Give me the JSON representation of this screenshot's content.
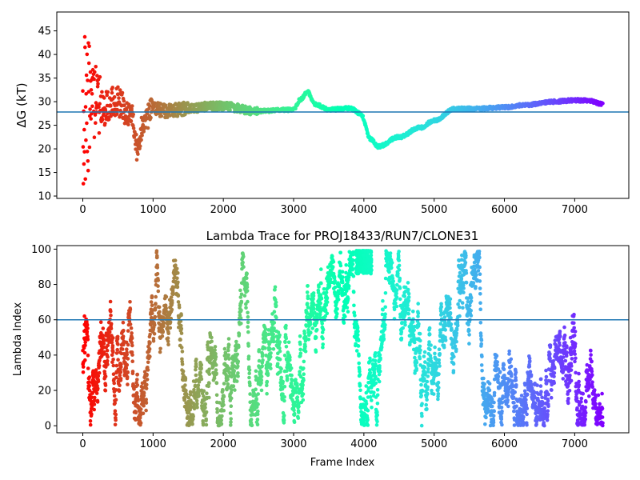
{
  "chart_data": [
    {
      "type": "scatter",
      "title": "",
      "xlabel": "",
      "ylabel": "ΔG (kT)",
      "xlim": [
        -370,
        7770
      ],
      "ylim": [
        9.5,
        49
      ],
      "xticks": [
        0,
        1000,
        2000,
        3000,
        4000,
        5000,
        6000,
        7000
      ],
      "yticks": [
        10,
        15,
        20,
        25,
        30,
        35,
        40,
        45
      ],
      "hline": 27.8,
      "hline_color": "#1f77b4",
      "colormap": "rainbow",
      "x_max": 7400,
      "trace_anchors": [
        [
          0,
          28
        ],
        [
          150,
          30
        ],
        [
          300,
          28.5
        ],
        [
          500,
          30
        ],
        [
          700,
          27
        ],
        [
          780,
          19.5
        ],
        [
          850,
          25
        ],
        [
          1000,
          28.5
        ],
        [
          1200,
          28
        ],
        [
          1500,
          28.5
        ],
        [
          1800,
          29
        ],
        [
          2000,
          29
        ],
        [
          2500,
          28
        ],
        [
          3000,
          28.3
        ],
        [
          3100,
          30.5
        ],
        [
          3200,
          32
        ],
        [
          3300,
          29.5
        ],
        [
          3500,
          28.3
        ],
        [
          3800,
          28.6
        ],
        [
          3950,
          27.5
        ],
        [
          4100,
          22
        ],
        [
          4200,
          20.5
        ],
        [
          4500,
          22.5
        ],
        [
          4800,
          24.5
        ],
        [
          5000,
          26
        ],
        [
          5300,
          28.5
        ],
        [
          5600,
          28.5
        ],
        [
          6000,
          28.8
        ],
        [
          6300,
          29.3
        ],
        [
          6700,
          30
        ],
        [
          7000,
          30.3
        ],
        [
          7200,
          30.2
        ],
        [
          7400,
          29.5
        ]
      ]
    },
    {
      "type": "scatter",
      "title": "Lambda Trace for PROJ18433/RUN7/CLONE31",
      "xlabel": "Frame Index",
      "ylabel": "Lambda Index",
      "xlim": [
        -370,
        7770
      ],
      "ylim": [
        -4,
        102
      ],
      "xticks": [
        0,
        1000,
        2000,
        3000,
        4000,
        5000,
        6000,
        7000
      ],
      "yticks": [
        0,
        20,
        40,
        60,
        80,
        100
      ],
      "hline": 60,
      "hline_color": "#1f77b4",
      "colormap": "rainbow",
      "x_max": 7400,
      "lambda_min": 0,
      "lambda_max": 99,
      "cluster_center": [
        4000,
        93
      ]
    }
  ]
}
